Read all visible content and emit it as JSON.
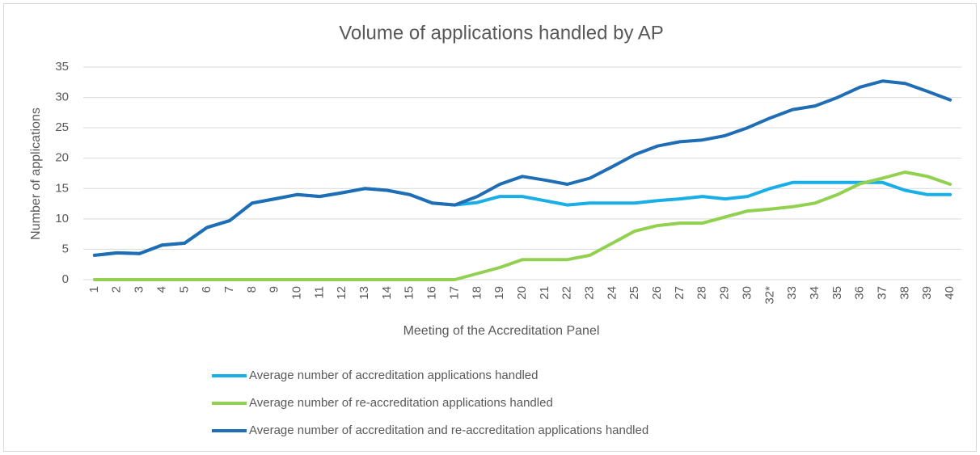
{
  "chart_data": {
    "type": "line",
    "title": "Volume of applications handled by AP",
    "x_label": "Meeting of the Accreditation Panel",
    "y_label": "Number of applications",
    "categories": [
      "1",
      "2",
      "3",
      "4",
      "5",
      "6",
      "7",
      "8",
      "9",
      "10",
      "11",
      "12",
      "13",
      "14",
      "15",
      "16",
      "17",
      "18",
      "19",
      "20",
      "21",
      "22",
      "23",
      "24",
      "25",
      "26",
      "27",
      "28",
      "29",
      "30",
      "32*",
      "33",
      "34",
      "35",
      "36",
      "37",
      "38",
      "39",
      "40"
    ],
    "series": [
      {
        "name": "Average number of accreditation applications handled",
        "color": "#1aaee8",
        "values": [
          4,
          4.4,
          4.3,
          5.7,
          6,
          8.6,
          9.7,
          12.6,
          13.3,
          14,
          13.7,
          14.3,
          15,
          14.7,
          14,
          12.6,
          12.3,
          12.7,
          13.7,
          13.7,
          13,
          12.3,
          12.6,
          12.6,
          12.6,
          13,
          13.3,
          13.7,
          13.3,
          13.7,
          15,
          16,
          16,
          16,
          16,
          16,
          14.7,
          14,
          14
        ]
      },
      {
        "name": "Average number of re-accreditation applications handled",
        "color": "#92d050",
        "values": [
          0,
          0,
          0,
          0,
          0,
          0,
          0,
          0,
          0,
          0,
          0,
          0,
          0,
          0,
          0,
          0,
          0,
          1,
          2,
          3.3,
          3.3,
          3.3,
          4,
          6,
          8,
          8.9,
          9.3,
          9.3,
          10.3,
          11.3,
          11.6,
          12,
          12.6,
          14,
          15.8,
          16.7,
          17.7,
          17,
          15.7
        ]
      },
      {
        "name": "Average number of accreditation and re-accreditation applications handled",
        "color": "#1f6db5",
        "values": [
          4,
          4.4,
          4.3,
          5.7,
          6,
          8.6,
          9.7,
          12.6,
          13.3,
          14,
          13.7,
          14.3,
          15,
          14.7,
          14,
          12.6,
          12.3,
          13.7,
          15.7,
          17,
          16.4,
          15.7,
          16.7,
          18.6,
          20.6,
          22,
          22.7,
          23,
          23.7,
          25,
          26.6,
          28,
          28.6,
          30,
          31.7,
          32.7,
          32.3,
          31,
          29.6
        ]
      }
    ],
    "ylim": [
      0,
      35
    ],
    "yticks": [
      0,
      5,
      10,
      15,
      20,
      25,
      30,
      35
    ],
    "grid": true
  }
}
